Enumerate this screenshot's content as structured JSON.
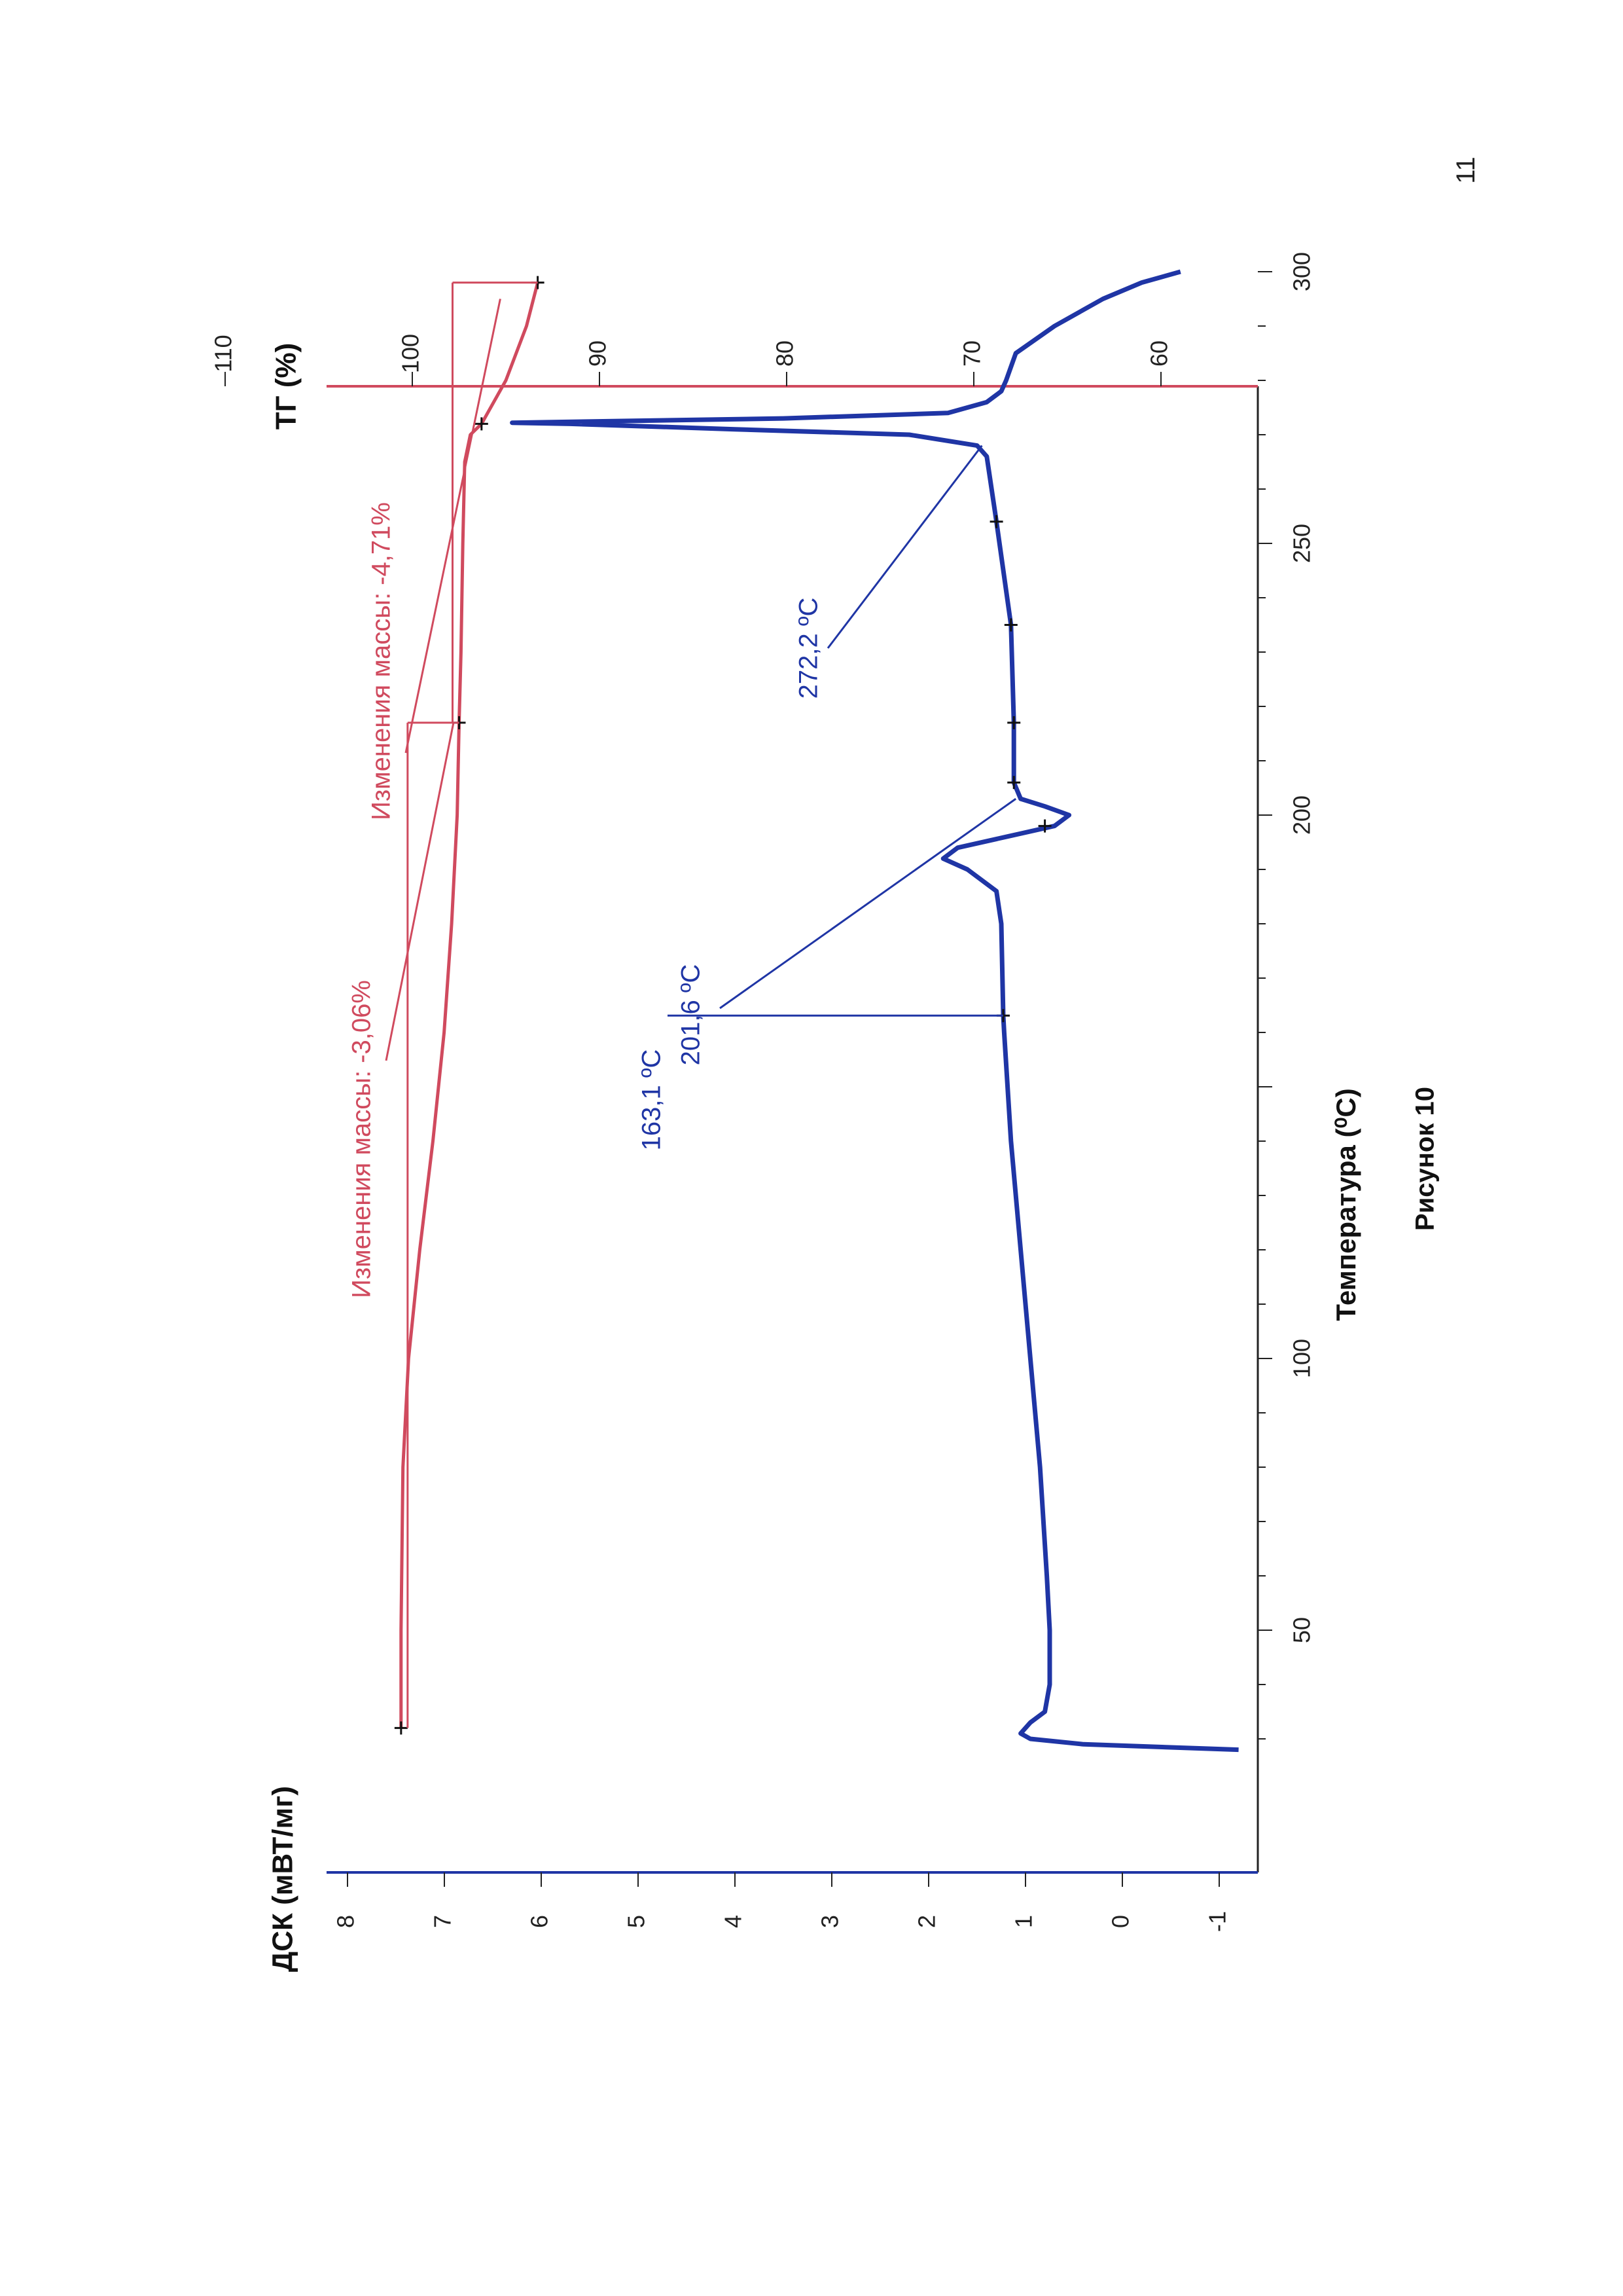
{
  "page_number": "11",
  "chart_data": {
    "type": "line",
    "orientation": "rotated 90° counter-clockwise",
    "xlabel": "Температура (⁰C)",
    "x_ticks": [
      50,
      100,
      150,
      200,
      250,
      300
    ],
    "x_tick_labels": [
      "50",
      "100",
      "",
      "200",
      "250",
      "300"
    ],
    "xlim": [
      27,
      300
    ],
    "y_left_label": "ДСК (мВТ/мг)",
    "y_left_ticks": [
      -1,
      0,
      1,
      2,
      3,
      4,
      5,
      6,
      7,
      8
    ],
    "y_left_tick_labels": [
      "-1",
      "0",
      "1",
      "2",
      "3",
      "4",
      "5",
      "6",
      "7",
      "8"
    ],
    "y_left_lim": [
      -1.2,
      8.3
    ],
    "y_right_label": "ТГ (%)",
    "y_right_ticks": [
      60,
      70,
      80,
      90,
      100,
      110
    ],
    "y_right_tick_labels": [
      "60",
      "70",
      "80",
      "90",
      "100",
      "110"
    ],
    "y_right_lim": [
      57.2,
      113.4
    ],
    "grid": false,
    "colors": {
      "dsc": "#1f35a5",
      "tg": "#d04a5e"
    },
    "series": [
      {
        "axis": "right",
        "x": [
          32,
          50,
          80,
          100,
          120,
          140,
          160,
          180,
          200,
          217,
          230,
          250,
          265,
          270,
          272,
          280,
          290,
          298
        ],
        "y": [
          100.6,
          100.6,
          100.5,
          100.2,
          99.6,
          98.9,
          98.3,
          97.9,
          97.6,
          97.5,
          97.4,
          97.3,
          97.2,
          96.9,
          96.3,
          95.0,
          93.9,
          93.3
        ]
      },
      {
        "axis": "left",
        "x": [
          28,
          29,
          30,
          31,
          33,
          35,
          40,
          50,
          60,
          80,
          100,
          120,
          140,
          160,
          163.1,
          180,
          186,
          190,
          192,
          194,
          196,
          198,
          200,
          201.6,
          203,
          206,
          217,
          235,
          254,
          260,
          266,
          268,
          270,
          271,
          272,
          272.2,
          273,
          274,
          276,
          278,
          280,
          285,
          290,
          295,
          298,
          300
        ],
        "y": [
          -1.2,
          0.4,
          0.95,
          1.05,
          0.95,
          0.8,
          0.75,
          0.75,
          0.78,
          0.85,
          0.95,
          1.05,
          1.15,
          1.22,
          1.23,
          1.25,
          1.3,
          1.6,
          1.85,
          1.7,
          1.2,
          0.7,
          0.55,
          0.8,
          1.05,
          1.12,
          1.12,
          1.15,
          1.3,
          1.35,
          1.4,
          1.5,
          2.2,
          4.0,
          5.7,
          6.3,
          3.5,
          1.8,
          1.4,
          1.25,
          1.2,
          1.1,
          0.7,
          0.2,
          -0.2,
          -0.6
        ]
      }
    ],
    "annotations": {
      "tg_change_1": "Изменения массы: -3,06%",
      "tg_change_2": "Изменения массы: -4,71%",
      "dsc_onset_1": "163,1 ºC",
      "dsc_peak_2": "201,6 ºC",
      "dsc_onset_3": "272,2 ºC"
    }
  },
  "caption": "Рисунок 10"
}
